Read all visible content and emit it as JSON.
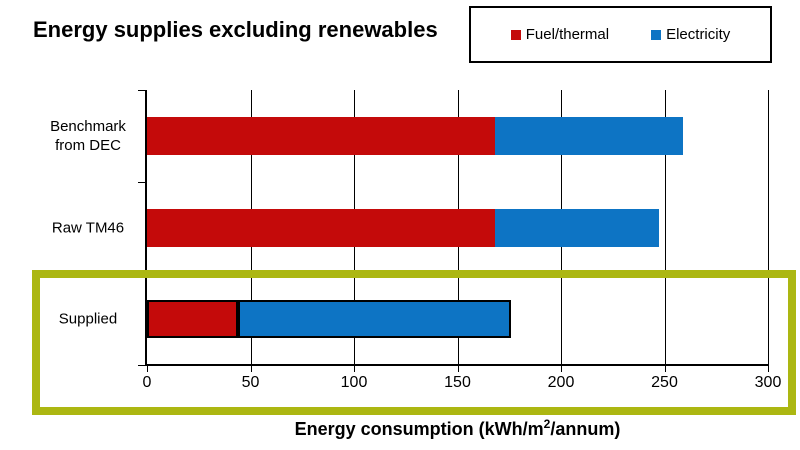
{
  "title": "Energy supplies excluding renewables",
  "legend": {
    "items": [
      {
        "label": "Fuel/thermal",
        "color": "#c40a0a"
      },
      {
        "label": "Electricity",
        "color": "#0d74c4"
      }
    ]
  },
  "axis": {
    "xlabel_prefix": "Energy consumption (kWh/m",
    "xlabel_sup": "2",
    "xlabel_suffix": "/annum)"
  },
  "chart_data": {
    "type": "bar",
    "orientation": "horizontal",
    "stacked": true,
    "title": "Energy supplies excluding renewables",
    "categories": [
      "Benchmark from DEC",
      "Raw TM46",
      "Supplied"
    ],
    "series": [
      {
        "name": "Fuel/thermal",
        "color": "#c40a0a",
        "values": [
          168,
          168,
          44
        ]
      },
      {
        "name": "Electricity",
        "color": "#0d74c4",
        "values": [
          91,
          79,
          132
        ]
      }
    ],
    "totals": [
      259,
      247,
      176
    ],
    "xlabel": "Energy consumption (kWh/m2/annum)",
    "xlim": [
      0,
      300
    ],
    "xticks": [
      0,
      50,
      100,
      150,
      200,
      250,
      300
    ],
    "grid": true,
    "legend_position": "top-right",
    "highlight": {
      "category": "Supplied",
      "box_color": "#acb712"
    }
  }
}
